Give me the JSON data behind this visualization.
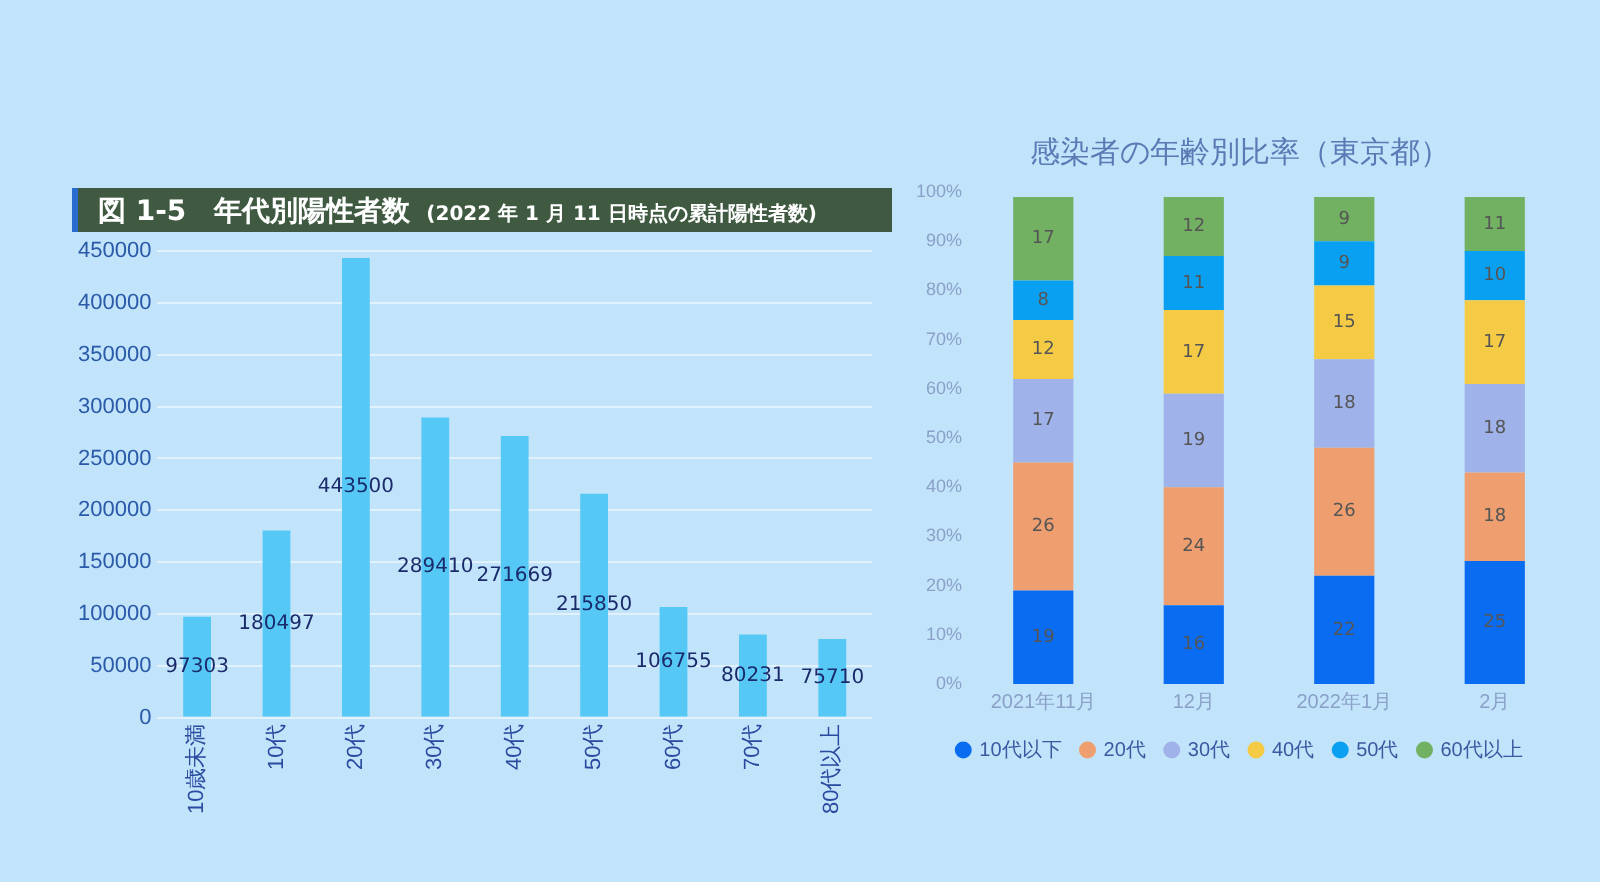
{
  "chart_data": [
    {
      "type": "bar",
      "title": "図 1-5　年代別陽性者数",
      "subtitle": "(2022 年 1 月 11 日時点の累計陽性者数)",
      "categories": [
        "10歳未満",
        "10代",
        "20代",
        "30代",
        "40代",
        "50代",
        "60代",
        "70代",
        "80代以上"
      ],
      "values": [
        97303,
        180497,
        443500,
        289410,
        271669,
        215850,
        106755,
        80231,
        75710
      ],
      "color": "#55c8f5",
      "ylim": [
        0,
        450000
      ],
      "yticks": [
        0,
        50000,
        100000,
        150000,
        200000,
        250000,
        300000,
        350000,
        400000,
        450000
      ],
      "grid": "y",
      "data_labels": true
    },
    {
      "type": "bar",
      "title": "感染者の年齢別比率（東京都）",
      "categories": [
        "2021年11月",
        "12月",
        "2022年1月",
        "2月"
      ],
      "stacked": true,
      "legend": "bottom",
      "data_labels": true,
      "ylim": [
        0,
        100
      ],
      "yticks": [
        {
          "value": 0,
          "label": "0%"
        },
        {
          "value": 10,
          "label": "10%"
        },
        {
          "value": 20,
          "label": "20%"
        },
        {
          "value": 30,
          "label": "30%"
        },
        {
          "value": 40,
          "label": "40%"
        },
        {
          "value": 50,
          "label": "50%"
        },
        {
          "value": 60,
          "label": "60%"
        },
        {
          "value": 70,
          "label": "70%"
        },
        {
          "value": 80,
          "label": "80%"
        },
        {
          "value": 90,
          "label": "90%"
        },
        {
          "value": 100,
          "label": "100%"
        }
      ],
      "series": [
        {
          "name": "10代以下",
          "color": "#0a6cf0",
          "values": [
            19,
            16,
            22,
            25
          ]
        },
        {
          "name": "20代",
          "color": "#ef9f6f",
          "values": [
            26,
            24,
            26,
            18
          ]
        },
        {
          "name": "30代",
          "color": "#a0b2ea",
          "values": [
            17,
            19,
            18,
            18
          ]
        },
        {
          "name": "40代",
          "color": "#f5cb45",
          "values": [
            12,
            17,
            15,
            17
          ]
        },
        {
          "name": "50代",
          "color": "#0aa0f2",
          "values": [
            8,
            11,
            9,
            10
          ]
        },
        {
          "name": "60代以上",
          "color": "#72b062",
          "values": [
            17,
            12,
            9,
            11
          ]
        }
      ]
    }
  ]
}
